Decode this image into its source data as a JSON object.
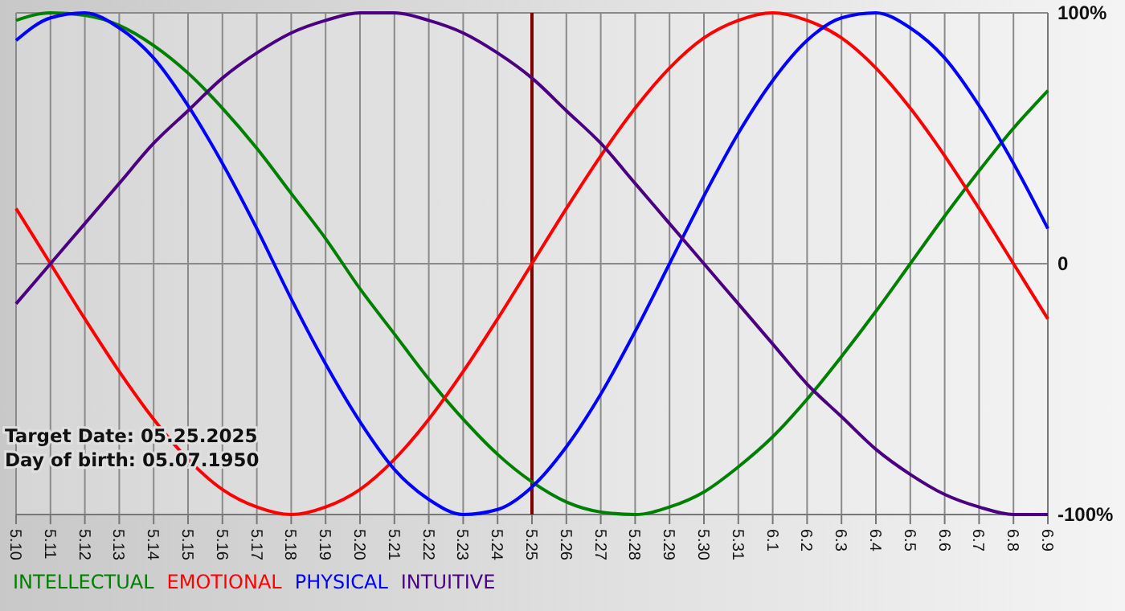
{
  "chart_data": {
    "type": "line",
    "categories": [
      "5.10",
      "5.11",
      "5.12",
      "5.13",
      "5.14",
      "5.15",
      "5.16",
      "5.17",
      "5.18",
      "5.19",
      "5.20",
      "5.21",
      "5.22",
      "5.23",
      "5.24",
      "5.25",
      "5.26",
      "5.27",
      "5.28",
      "5.29",
      "5.30",
      "5.31",
      "6.1",
      "6.2",
      "6.3",
      "6.4",
      "6.5",
      "6.6",
      "6.7",
      "6.8",
      "6.9"
    ],
    "series": [
      {
        "name": "INTELLECTUAL",
        "color": "#008000",
        "values": [
          97,
          100,
          99,
          95,
          87,
          76,
          62,
          46,
          28,
          10,
          -10,
          -28,
          -46,
          -62,
          -76,
          -87,
          -95,
          -99,
          -100,
          -97,
          -91,
          -81,
          -69,
          -54,
          -37,
          -19,
          0,
          19,
          37,
          54,
          69
        ]
      },
      {
        "name": "EMOTIONAL",
        "color": "#ff0000",
        "values": [
          22,
          0,
          -22,
          -43,
          -62,
          -78,
          -90,
          -97,
          -100,
          -97,
          -90,
          -78,
          -62,
          -43,
          -22,
          0,
          22,
          43,
          62,
          78,
          90,
          97,
          100,
          97,
          90,
          78,
          62,
          43,
          22,
          0,
          -22
        ]
      },
      {
        "name": "PHYSICAL",
        "color": "#0000ff",
        "values": [
          89,
          98,
          100,
          94,
          82,
          63,
          40,
          14,
          -14,
          -40,
          -63,
          -82,
          -94,
          -100,
          -98,
          -89,
          -73,
          -52,
          -27,
          0,
          27,
          52,
          73,
          89,
          98,
          100,
          94,
          82,
          63,
          40,
          14
        ]
      },
      {
        "name": "INTUITIVE",
        "color": "#4b0082",
        "values": [
          -16,
          0,
          16,
          32,
          48,
          61,
          74,
          84,
          92,
          97,
          100,
          100,
          97,
          92,
          84,
          74,
          61,
          48,
          32,
          16,
          0,
          -16,
          -32,
          -48,
          -61,
          -74,
          -84,
          -92,
          -97,
          -100,
          -100
        ]
      }
    ],
    "ylim": [
      -100,
      100
    ],
    "yticks": [
      {
        "value": 100,
        "label": "100%"
      },
      0,
      {
        "value": -100,
        "label": "-100%"
      }
    ],
    "grid": true,
    "legend": "bottom left",
    "marker": "none",
    "line_style": "solid",
    "ref_lines": [
      {
        "axis": "x",
        "value": "5.25",
        "color": "#800000"
      }
    ],
    "annotations": [
      "Target Date: 05.25.2025",
      "Day of birth: 05.07.1950"
    ]
  }
}
